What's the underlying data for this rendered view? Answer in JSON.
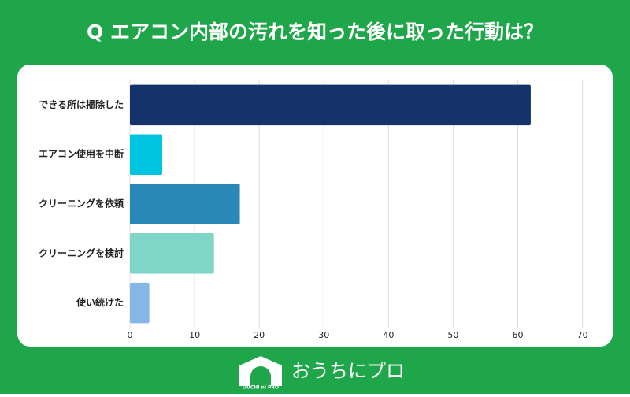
{
  "chart_data": {
    "type": "bar",
    "orientation": "horizontal",
    "title": "Q エアコン内部の汚れを知った後に取った行動は？",
    "categories": [
      "できる所は掃除した",
      "エアコン使用を中断",
      "クリーニングを依頼",
      "クリーニングを検討",
      "使い続けた"
    ],
    "values": [
      62,
      5,
      17,
      13,
      3
    ],
    "colors": [
      "#13336a",
      "#00c5e0",
      "#2a88b7",
      "#7fd6c6",
      "#86b6e6"
    ],
    "xlim": [
      0,
      72
    ],
    "xticks": [
      0,
      10,
      20,
      30,
      40,
      50,
      60,
      70
    ],
    "grid": true
  },
  "footer": {
    "logo_small": "OUCHI ni PRO",
    "logo_text": "おうちにプロ"
  }
}
